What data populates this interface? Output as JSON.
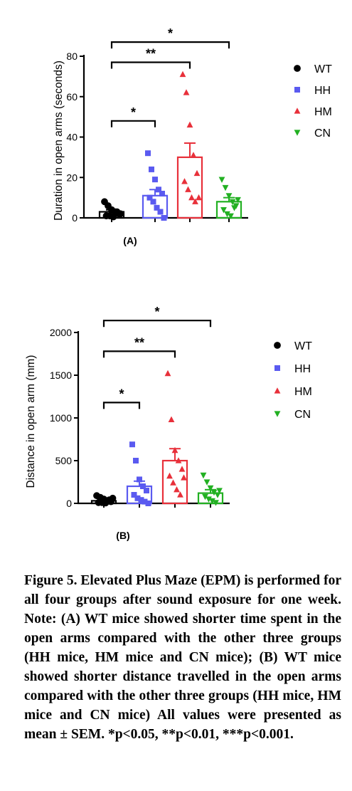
{
  "chart_data": [
    {
      "type": "bar",
      "panel_label": "(A)",
      "ylabel": "Duration in open arms (seconds)",
      "ylim": [
        0,
        80
      ],
      "yticks": [
        "0",
        "20",
        "40",
        "60",
        "80"
      ],
      "categories": [
        "WT",
        "HH",
        "HM",
        "CN"
      ],
      "means": [
        3,
        11,
        30,
        8
      ],
      "sem": [
        1,
        3,
        7,
        2
      ],
      "points": [
        [
          8,
          6,
          4,
          3,
          2,
          1,
          1,
          0.5,
          3,
          2
        ],
        [
          32,
          24,
          19,
          14,
          12,
          10,
          8,
          5,
          3,
          0
        ],
        [
          71,
          62,
          46,
          31,
          22,
          18,
          14,
          10,
          8,
          10
        ],
        [
          19,
          15,
          11,
          8,
          6,
          4,
          2,
          1,
          5,
          9
        ]
      ],
      "significance": [
        {
          "pair": [
            "WT",
            "HH"
          ],
          "label": "*",
          "y": 48
        },
        {
          "pair": [
            "WT",
            "HM"
          ],
          "label": "**",
          "y": 77
        },
        {
          "pair": [
            "WT",
            "CN"
          ],
          "label": "*",
          "y": 87
        }
      ],
      "legend": [
        {
          "label": "WT",
          "marker": "circle",
          "color": "#000000"
        },
        {
          "label": "HH",
          "marker": "square",
          "color": "#5a5af0"
        },
        {
          "label": "HM",
          "marker": "triangle-up",
          "color": "#e8303a"
        },
        {
          "label": "CN",
          "marker": "triangle-down",
          "color": "#22b022"
        }
      ]
    },
    {
      "type": "bar",
      "panel_label": "(B)",
      "ylabel": "Distance in open arm (mm)",
      "ylim": [
        0,
        2000
      ],
      "yticks": [
        "0",
        "500",
        "1000",
        "1500",
        "2000"
      ],
      "categories": [
        "WT",
        "HH",
        "HM",
        "CN"
      ],
      "means": [
        30,
        200,
        500,
        120
      ],
      "sem": [
        10,
        60,
        140,
        40
      ],
      "points": [
        [
          90,
          70,
          50,
          30,
          20,
          10,
          10,
          5,
          40,
          60
        ],
        [
          690,
          500,
          280,
          200,
          150,
          100,
          60,
          40,
          20,
          0
        ],
        [
          1520,
          980,
          620,
          500,
          400,
          320,
          240,
          160,
          100,
          300
        ],
        [
          330,
          250,
          180,
          130,
          100,
          80,
          50,
          30,
          10,
          150
        ]
      ],
      "significance": [
        {
          "pair": [
            "WT",
            "HH"
          ],
          "label": "*",
          "y": 1180
        },
        {
          "pair": [
            "WT",
            "HM"
          ],
          "label": "**",
          "y": 1780
        },
        {
          "pair": [
            "WT",
            "CN"
          ],
          "label": "*",
          "y": 2140
        }
      ],
      "legend": [
        {
          "label": "WT",
          "marker": "circle",
          "color": "#000000"
        },
        {
          "label": "HH",
          "marker": "square",
          "color": "#5a5af0"
        },
        {
          "label": "HM",
          "marker": "triangle-up",
          "color": "#e8303a"
        },
        {
          "label": "CN",
          "marker": "triangle-down",
          "color": "#22b022"
        }
      ]
    }
  ],
  "caption": {
    "text": "Figure 5. Elevated Plus Maze (EPM) is performed for all four groups after sound exposure for one week. Note: (A) WT mice showed shorter time spent in the open arms compared with the other three groups (HH mice, HM mice and CN mice); (B) WT mice showed shorter distance travelled in the open arms compared with the other three groups (HH mice, HM mice and CN mice) All values were presented as mean ± SEM. *p<0.05, **p<0.01, ***p<0.001."
  }
}
